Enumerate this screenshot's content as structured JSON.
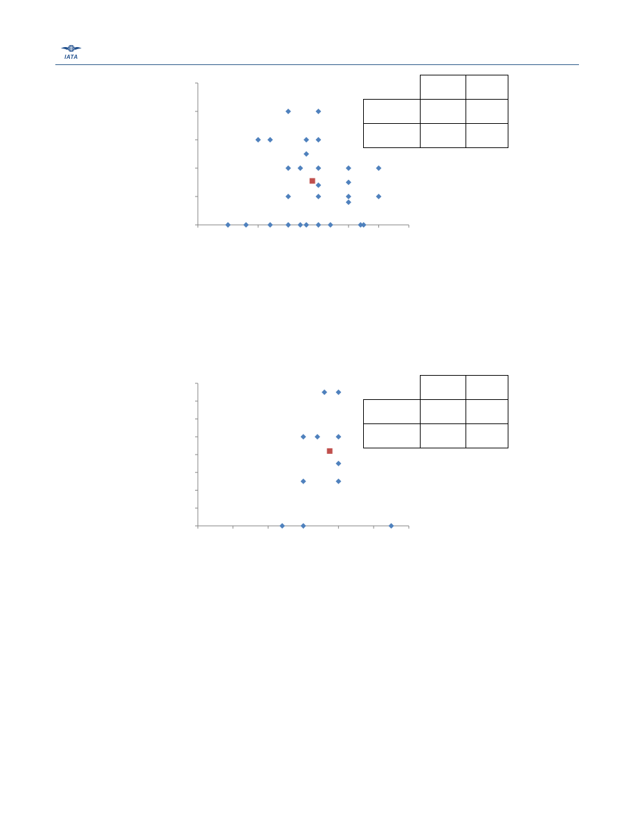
{
  "header": {
    "logo_text": "IATA",
    "accent_color": "#2e5c8a"
  },
  "colors": {
    "series_points": "#4f81bd",
    "mean_point": "#c0504d"
  },
  "chart_data": [
    {
      "type": "scatter",
      "title": "",
      "xlabel": "",
      "ylabel": "",
      "xlim": [
        0,
        7
      ],
      "ylim": [
        0,
        5
      ],
      "x_ticks": [
        0,
        1,
        2,
        3,
        4,
        5,
        6,
        7
      ],
      "y_ticks": [
        0,
        1,
        2,
        3,
        4,
        5
      ],
      "grid": false,
      "series": [
        {
          "marker": "diamond",
          "points": [
            [
              1.0,
              0
            ],
            [
              1.6,
              0
            ],
            [
              2.4,
              0
            ],
            [
              3.0,
              0
            ],
            [
              3.4,
              0
            ],
            [
              3.6,
              0
            ],
            [
              4.0,
              0
            ],
            [
              4.4,
              0
            ],
            [
              5.4,
              0
            ],
            [
              5.5,
              0
            ],
            [
              3.0,
              1
            ],
            [
              4.0,
              1
            ],
            [
              5.0,
              1
            ],
            [
              6.0,
              1
            ],
            [
              5.0,
              0.8
            ],
            [
              4.0,
              1.4
            ],
            [
              5.0,
              1.5
            ],
            [
              3.0,
              2
            ],
            [
              3.4,
              2
            ],
            [
              4.0,
              2
            ],
            [
              5.0,
              2
            ],
            [
              6.0,
              2
            ],
            [
              3.6,
              2.5
            ],
            [
              2.0,
              3
            ],
            [
              2.4,
              3
            ],
            [
              3.6,
              3
            ],
            [
              4.0,
              3
            ],
            [
              3.0,
              4
            ],
            [
              4.0,
              4
            ]
          ]
        },
        {
          "marker": "square",
          "points": [
            [
              3.8,
              1.55
            ]
          ]
        }
      ]
    },
    {
      "type": "scatter",
      "title": "",
      "xlabel": "",
      "ylabel": "",
      "xlim": [
        0,
        6
      ],
      "ylim": [
        0,
        8
      ],
      "x_ticks": [
        0,
        1,
        2,
        3,
        4,
        5,
        6
      ],
      "y_ticks": [
        0,
        1,
        2,
        3,
        4,
        5,
        6,
        7,
        8
      ],
      "grid": false,
      "series": [
        {
          "marker": "diamond",
          "points": [
            [
              2.4,
              0
            ],
            [
              3.0,
              0
            ],
            [
              5.5,
              0
            ],
            [
              3.0,
              2.5
            ],
            [
              4.0,
              2.5
            ],
            [
              4.0,
              3.5
            ],
            [
              3.0,
              5
            ],
            [
              3.4,
              5
            ],
            [
              4.0,
              5
            ],
            [
              3.6,
              7.5
            ],
            [
              4.0,
              7.5
            ]
          ]
        },
        {
          "marker": "square",
          "points": [
            [
              3.75,
              4.2
            ]
          ]
        }
      ]
    }
  ]
}
